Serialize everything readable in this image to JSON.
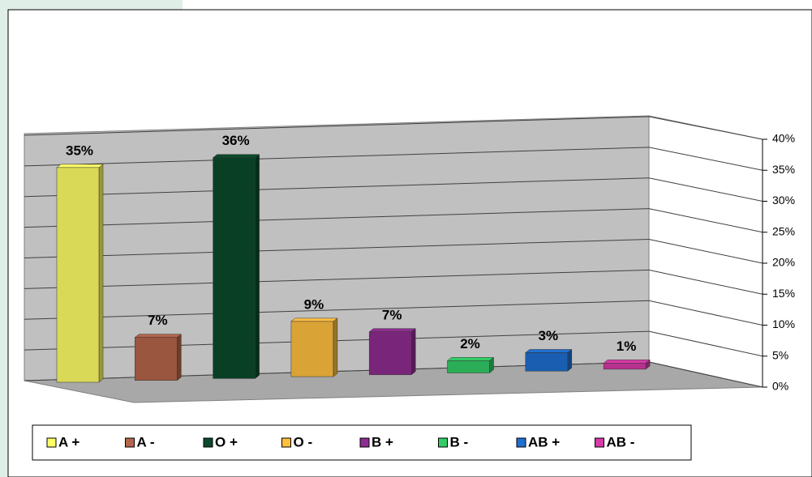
{
  "chart_data": {
    "type": "bar3d",
    "categories": [
      "A +",
      "A -",
      "O +",
      "O -",
      "B +",
      "B -",
      "AB +",
      "AB -"
    ],
    "values": [
      35,
      7,
      36,
      9,
      7,
      2,
      3,
      1
    ],
    "value_labels": [
      "35%",
      "7%",
      "36%",
      "9%",
      "7%",
      "2%",
      "3%",
      "1%"
    ],
    "colors": [
      "#ffff66",
      "#b5654a",
      "#0b4a2c",
      "#ffc040",
      "#8e2d90",
      "#33cc66",
      "#1f6fd0",
      "#d83aa8"
    ],
    "ylim": [
      0,
      40
    ],
    "yticks": [
      {
        "value": 0,
        "label": "0%"
      },
      {
        "value": 5,
        "label": "5%"
      },
      {
        "value": 10,
        "label": "10%"
      },
      {
        "value": 15,
        "label": "15%"
      },
      {
        "value": 20,
        "label": "20%"
      },
      {
        "value": 25,
        "label": "25%"
      },
      {
        "value": 30,
        "label": "30%"
      },
      {
        "value": 35,
        "label": "35%"
      },
      {
        "value": 40,
        "label": "40%"
      }
    ],
    "grid": true,
    "legend": "bottom"
  }
}
